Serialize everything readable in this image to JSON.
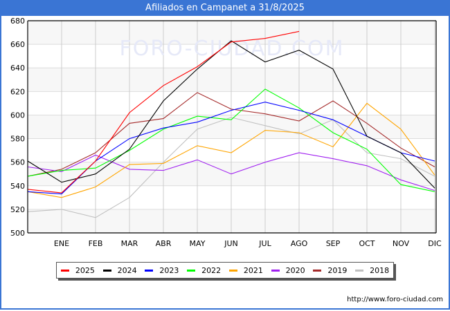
{
  "header": {
    "title": "Afiliados en Campanet a 31/8/2025"
  },
  "watermark": "FORO-CIUDAD.COM",
  "source": "http://www.foro-ciudad.com",
  "chart_data": {
    "type": "line",
    "title": "Afiliados en Campanet a 31/8/2025",
    "xlabel": "",
    "ylabel": "",
    "x": [
      "",
      "ENE",
      "FEB",
      "MAR",
      "ABR",
      "MAY",
      "JUN",
      "JUL",
      "AGO",
      "SEP",
      "OCT",
      "NOV",
      "DIC"
    ],
    "categories": [
      "ENE",
      "FEB",
      "MAR",
      "ABR",
      "MAY",
      "JUN",
      "JUL",
      "AGO",
      "SEP",
      "OCT",
      "NOV",
      "DIC"
    ],
    "ylim": [
      500,
      680
    ],
    "yticks": [
      500,
      520,
      540,
      560,
      580,
      600,
      620,
      640,
      660,
      680
    ],
    "grid": true,
    "legend_position": "bottom",
    "series": [
      {
        "name": "2025",
        "color": "#ff0000",
        "values": [
          537,
          534,
          561,
          602,
          625,
          641,
          662,
          665,
          671,
          null,
          null,
          null,
          null
        ]
      },
      {
        "name": "2024",
        "color": "#000000",
        "values": [
          561,
          543,
          550,
          571,
          612,
          639,
          663,
          645,
          655,
          639,
          582,
          568,
          538
        ]
      },
      {
        "name": "2023",
        "color": "#0000ff",
        "values": [
          535,
          533,
          561,
          580,
          589,
          594,
          604,
          611,
          604,
          596,
          582,
          568,
          561
        ]
      },
      {
        "name": "2022",
        "color": "#00ff00",
        "values": [
          548,
          553,
          555,
          570,
          588,
          599,
          596,
          622,
          606,
          585,
          571,
          541,
          535
        ]
      },
      {
        "name": "2021",
        "color": "#ffa500",
        "values": [
          535,
          530,
          539,
          558,
          559,
          574,
          568,
          587,
          585,
          573,
          610,
          588,
          549
        ]
      },
      {
        "name": "2020",
        "color": "#a020f0",
        "values": [
          556,
          552,
          566,
          554,
          553,
          562,
          550,
          560,
          568,
          563,
          557,
          545,
          536
        ]
      },
      {
        "name": "2019",
        "color": "#a52a2a",
        "values": [
          548,
          554,
          568,
          593,
          597,
          619,
          605,
          601,
          595,
          612,
          593,
          572,
          556
        ]
      },
      {
        "name": "2018",
        "color": "#c0c0c0",
        "values": [
          518,
          520,
          513,
          530,
          560,
          588,
          598,
          591,
          584,
          596,
          568,
          563,
          548
        ]
      }
    ]
  }
}
